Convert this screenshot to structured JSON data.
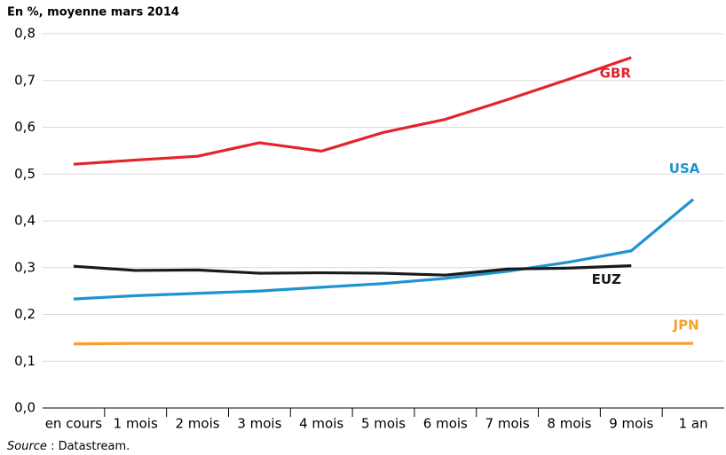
{
  "chart_data": {
    "type": "line",
    "title": "En %, moyenne mars 2014",
    "categories": [
      "en cours",
      "1 mois",
      "2 mois",
      "3 mois",
      "4 mois",
      "5 mois",
      "6 mois",
      "7 mois",
      "8 mois",
      "9 mois",
      "1 an"
    ],
    "series": [
      {
        "name": "GBR",
        "color": "#e3242b",
        "values": [
          0.521,
          0.53,
          0.538,
          0.567,
          0.549,
          0.589,
          0.617,
          0.659,
          0.703,
          0.749,
          null
        ]
      },
      {
        "name": "USA",
        "color": "#1f93d0",
        "values": [
          0.233,
          0.24,
          0.245,
          0.25,
          0.258,
          0.266,
          0.277,
          0.292,
          0.312,
          0.336,
          0.446
        ]
      },
      {
        "name": "EUZ",
        "color": "#1a1a1a",
        "values": [
          0.303,
          0.294,
          0.295,
          0.288,
          0.289,
          0.288,
          0.284,
          0.297,
          0.299,
          0.304,
          null
        ]
      },
      {
        "name": "JPN",
        "color": "#f5a02a",
        "values": [
          0.137,
          0.138,
          0.138,
          0.138,
          0.138,
          0.138,
          0.138,
          0.138,
          0.138,
          0.138,
          0.138
        ]
      }
    ],
    "ylim": [
      0,
      0.8
    ],
    "yticks": [
      {
        "value": 0,
        "label": "0,0"
      },
      {
        "value": 0.1,
        "label": "0,1"
      },
      {
        "value": 0.2,
        "label": "0,2"
      },
      {
        "value": 0.3,
        "label": "0,3"
      },
      {
        "value": 0.4,
        "label": "0,4"
      },
      {
        "value": 0.5,
        "label": "0,5"
      },
      {
        "value": 0.6,
        "label": "0,6"
      },
      {
        "value": 0.7,
        "label": "0,7"
      },
      {
        "value": 0.8,
        "label": "0,8"
      }
    ],
    "grid": true,
    "source": {
      "label": "Source",
      "text": " : Datastream."
    }
  }
}
